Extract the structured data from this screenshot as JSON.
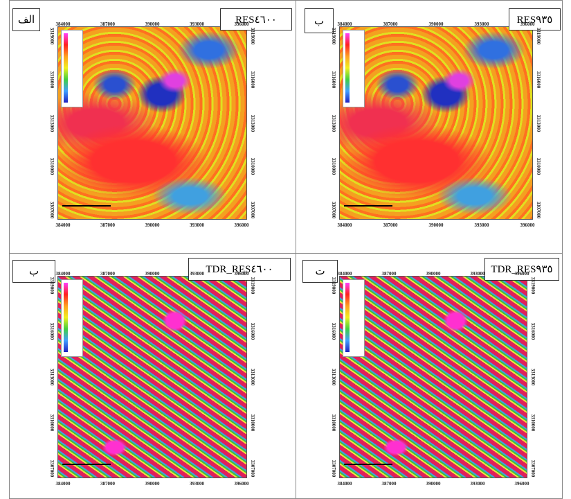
{
  "panels": [
    {
      "label": "الف",
      "title": "RES٤٦٠٠",
      "xticks": [
        384000,
        387000,
        390000,
        393000,
        396000
      ],
      "yticks": [
        3319000,
        3316000,
        3313000,
        3310000,
        3307000
      ]
    },
    {
      "label": "ب",
      "title": "RES٩٣٥",
      "xticks": [
        384000,
        387000,
        390000,
        393000,
        396000
      ],
      "yticks": [
        3319000,
        3316000,
        3313000,
        3310000,
        3307000
      ]
    },
    {
      "label": "ب",
      "title": "TDR_RES٤٦٠٠",
      "xticks": [
        384000,
        387000,
        390000,
        393000,
        396000
      ],
      "yticks": [
        3319000,
        3316000,
        3313000,
        3310000,
        3307000
      ]
    },
    {
      "label": "ت",
      "title": "TDR_RES٩٣٥",
      "xticks": [
        384000,
        387000,
        390000,
        393000,
        396000
      ],
      "yticks": [
        3319000,
        3316000,
        3313000,
        3310000,
        3307000
      ]
    }
  ]
}
